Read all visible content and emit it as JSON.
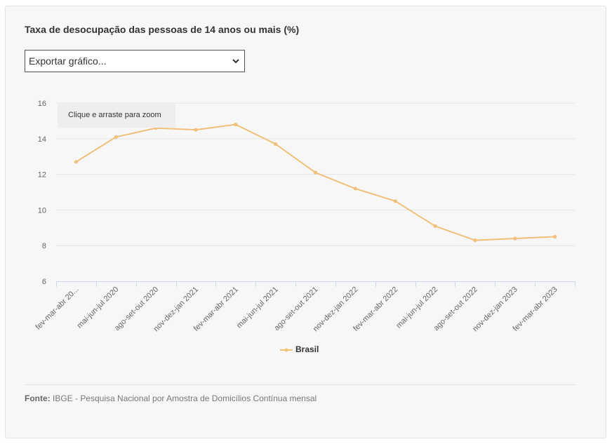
{
  "title": "Taxa de desocupação das pessoas de 14 anos ou mais (%)",
  "export": {
    "label": "Exportar gráfico..."
  },
  "tooltip": "Clique e arraste para zoom",
  "source": {
    "prefix": "Fonte:",
    "text": " IBGE - Pesquisa Nacional por Amostra de Domicílios Contínua mensal"
  },
  "colors": {
    "series": "#f0c07a",
    "grid": "#e6e6e6",
    "axis": "#ccd6eb",
    "tick_text": "#666666"
  },
  "chart_data": {
    "type": "line",
    "title": "Taxa de desocupação das pessoas de 14 anos ou mais (%)",
    "xlabel": "",
    "ylabel": "",
    "ylim": [
      6,
      16
    ],
    "yticks": [
      6,
      8,
      10,
      12,
      14,
      16
    ],
    "grid": true,
    "legend_position": "bottom-center",
    "categories": [
      "fev-mar-abr 20...",
      "mai-jun-jul 2020",
      "ago-set-out 2020",
      "nov-dez-jan 2021",
      "fev-mar-abr 2021",
      "mai-jun-jul 2021",
      "ago-set-out 2021",
      "nov-dez-jan 2022",
      "fev-mar-abr 2022",
      "mai-jun-jul 2022",
      "ago-set-out 2022",
      "nov-dez-jan 2023",
      "fev-mar-abr 2023"
    ],
    "series": [
      {
        "name": "Brasil",
        "values": [
          12.7,
          14.1,
          14.6,
          14.5,
          14.8,
          13.7,
          12.1,
          11.2,
          10.5,
          9.1,
          8.3,
          8.4,
          8.5
        ]
      }
    ]
  }
}
